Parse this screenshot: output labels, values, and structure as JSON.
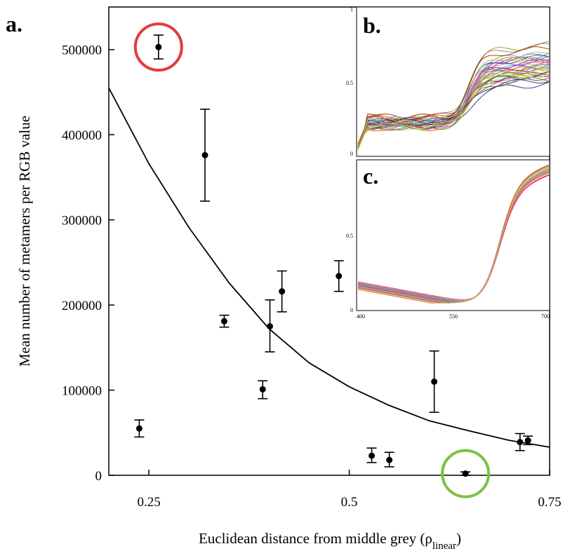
{
  "chart_data": [
    {
      "panel": "a.",
      "type": "scatter",
      "xlabel": "Euclidean distance from middle grey (ρ",
      "xlabel_sub": "linear",
      "xlabel_end": ")",
      "ylabel": "Mean number of metamers per RGB value",
      "xlim": [
        0.2,
        0.75
      ],
      "ylim": [
        0,
        550000
      ],
      "x_ticks": [
        0.25,
        0.5,
        0.75
      ],
      "x_tick_labels": [
        "0.25",
        "0.5",
        "0.75"
      ],
      "y_ticks": [
        0,
        100000,
        200000,
        300000,
        400000,
        500000
      ],
      "y_tick_labels": [
        "0",
        "100000",
        "200000",
        "300000",
        "400000",
        "500000"
      ],
      "points": [
        {
          "x": 0.238,
          "y": 55000,
          "lo": 45000,
          "hi": 65000
        },
        {
          "x": 0.262,
          "y": 503000,
          "lo": 489000,
          "hi": 517000
        },
        {
          "x": 0.32,
          "y": 376000,
          "lo": 322000,
          "hi": 430000
        },
        {
          "x": 0.344,
          "y": 181000,
          "lo": 174000,
          "hi": 188000
        },
        {
          "x": 0.392,
          "y": 101000,
          "lo": 90000,
          "hi": 111000
        },
        {
          "x": 0.401,
          "y": 175000,
          "lo": 145000,
          "hi": 206000
        },
        {
          "x": 0.416,
          "y": 216000,
          "lo": 192000,
          "hi": 240000
        },
        {
          "x": 0.487,
          "y": 234000,
          "lo": 216000,
          "hi": 252000
        },
        {
          "x": 0.528,
          "y": 23000,
          "lo": 15000,
          "hi": 32000
        },
        {
          "x": 0.55,
          "y": 18000,
          "lo": 10000,
          "hi": 27000
        },
        {
          "x": 0.606,
          "y": 110000,
          "lo": 74000,
          "hi": 146000
        },
        {
          "x": 0.645,
          "y": 2000,
          "lo": 0,
          "hi": 4000
        },
        {
          "x": 0.713,
          "y": 39000,
          "lo": 29000,
          "hi": 49000
        },
        {
          "x": 0.723,
          "y": 41000,
          "lo": 36000,
          "hi": 46000
        }
      ],
      "fit_curve": {
        "x": [
          0.2,
          0.25,
          0.3,
          0.35,
          0.4,
          0.45,
          0.5,
          0.55,
          0.6,
          0.65,
          0.7,
          0.75
        ],
        "y": [
          455000,
          366000,
          291000,
          226000,
          172000,
          132000,
          104000,
          82000,
          64000,
          52000,
          41000,
          33000
        ]
      },
      "highlights": [
        {
          "x": 0.262,
          "y": 503000,
          "color": "#e53b3b"
        },
        {
          "x": 0.645,
          "y": 2000,
          "color": "#7dc242"
        }
      ]
    },
    {
      "panel": "b.",
      "type": "line",
      "xlim": [
        400,
        700
      ],
      "ylim": [
        0,
        1
      ],
      "y_tick_labels": [
        "1",
        "0.5",
        "0"
      ],
      "note": "many overlapping multicolored reflectance spectra"
    },
    {
      "panel": "c.",
      "type": "line",
      "xlim": [
        400,
        700
      ],
      "ylim": [
        0,
        0.75
      ],
      "x_tick_labels": [
        "400",
        "550",
        "700"
      ],
      "y_tick_labels": [
        "0.5",
        "0"
      ],
      "note": "many overlapping multicolored reflectance spectra"
    }
  ]
}
